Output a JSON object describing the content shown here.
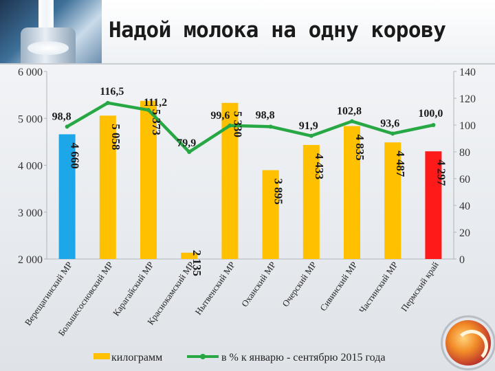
{
  "header": {
    "title": "Надой молока на одну корову"
  },
  "colors": {
    "bar_default": "#ffc000",
    "bar_highlight_first": "#1ea7e8",
    "bar_highlight_last": "#ff1a1a",
    "line": "#27a844"
  },
  "chart_data": {
    "type": "bar",
    "categories": [
      "Верещагинский МР",
      "Большесосновский МР",
      "Карагайский МР",
      "Краснокамский МР",
      "Нытвенский МР",
      "Оханский МР",
      "Очерский МР",
      "Сивинский МР",
      "Частинский МР",
      "Пермский край"
    ],
    "series": [
      {
        "name": "килограмм",
        "axis": "left",
        "values": [
          4660,
          5058,
          5373,
          2135,
          5330,
          3895,
          4433,
          4835,
          4487,
          4297
        ],
        "labels": [
          "4 660",
          "5 058",
          "5 373",
          "2 135",
          "5 330",
          "3 895",
          "4 433",
          "4 835",
          "4 487",
          "4 297"
        ]
      },
      {
        "name": "в % к январю - сентябрю 2015 года",
        "axis": "right",
        "type": "line",
        "values": [
          98.8,
          116.5,
          111.2,
          79.9,
          99.6,
          98.8,
          91.9,
          102.8,
          93.6,
          100.0
        ],
        "labels": [
          "98,8",
          "116,5",
          "111,2",
          "79,9",
          "99,6",
          "98,8",
          "91,9",
          "102,8",
          "93,6",
          "100,0"
        ]
      }
    ],
    "y_left": {
      "lim": [
        2000,
        6000
      ],
      "ticks": [
        2000,
        3000,
        4000,
        5000,
        6000
      ],
      "tick_labels": [
        "2 000",
        "3 000",
        "4 000",
        "5 000",
        "6 000"
      ]
    },
    "y_right": {
      "lim": [
        0,
        140
      ],
      "ticks": [
        0,
        20,
        40,
        60,
        80,
        100,
        120,
        140
      ],
      "tick_labels": [
        "0",
        "20",
        "40",
        "60",
        "80",
        "100",
        "120",
        "140"
      ]
    },
    "legend": {
      "position": "bottom"
    }
  }
}
